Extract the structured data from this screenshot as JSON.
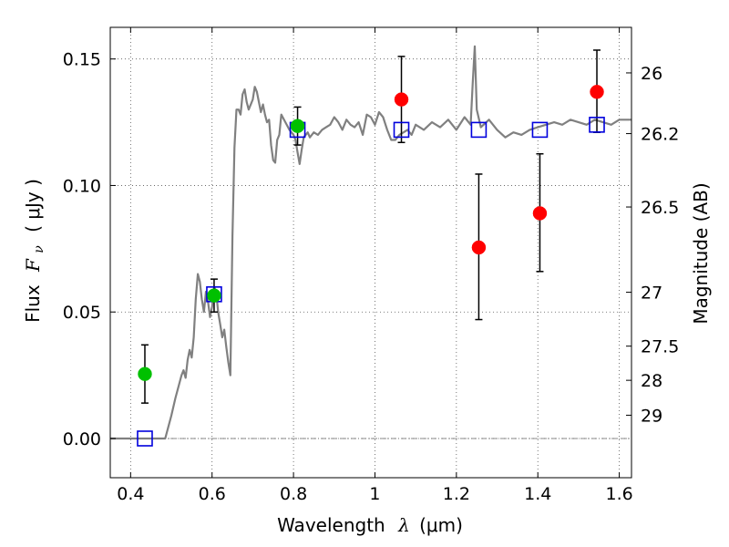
{
  "chart_data": {
    "type": "scatter",
    "xlabel": {
      "pre": "Wavelength",
      "sym": "λ",
      "unit": "(μm)"
    },
    "ylabel": {
      "pre": "Flux",
      "sym": "F",
      "sub": "ν",
      "unit": "( μJy )"
    },
    "y2label": "Magnitude (AB)",
    "xlim": [
      0.35,
      1.63
    ],
    "ylim": [
      -0.0155,
      0.1625
    ],
    "grid": true,
    "x_ticks": [
      {
        "value": 0.4,
        "label": "0.4"
      },
      {
        "value": 0.6,
        "label": "0.6"
      },
      {
        "value": 0.8,
        "label": "0.8"
      },
      {
        "value": 1.0,
        "label": "1"
      },
      {
        "value": 1.2,
        "label": "1.2"
      },
      {
        "value": 1.4,
        "label": "1.4"
      },
      {
        "value": 1.6,
        "label": "1.6"
      }
    ],
    "y_ticks": [
      {
        "value": 0.0,
        "label": "0.00"
      },
      {
        "value": 0.05,
        "label": "0.05"
      },
      {
        "value": 0.1,
        "label": "0.10"
      },
      {
        "value": 0.15,
        "label": "0.15"
      }
    ],
    "y2_ticks": [
      {
        "flux": 0.1445,
        "label": "26"
      },
      {
        "flux": 0.1205,
        "label": "26.2"
      },
      {
        "flux": 0.0915,
        "label": "26.5"
      },
      {
        "flux": 0.0578,
        "label": "27"
      },
      {
        "flux": 0.0365,
        "label": "27.5"
      },
      {
        "flux": 0.023,
        "label": "28"
      },
      {
        "flux": 0.0092,
        "label": "29"
      }
    ],
    "model_sed": {
      "color": "#808080",
      "x": [
        0.35,
        0.485,
        0.5,
        0.51,
        0.52,
        0.525,
        0.53,
        0.535,
        0.54,
        0.545,
        0.55,
        0.555,
        0.56,
        0.565,
        0.57,
        0.575,
        0.58,
        0.585,
        0.59,
        0.595,
        0.6,
        0.605,
        0.61,
        0.615,
        0.62,
        0.625,
        0.63,
        0.635,
        0.64,
        0.645,
        0.65,
        0.655,
        0.66,
        0.665,
        0.67,
        0.675,
        0.68,
        0.685,
        0.69,
        0.695,
        0.7,
        0.705,
        0.71,
        0.715,
        0.72,
        0.725,
        0.73,
        0.735,
        0.74,
        0.745,
        0.75,
        0.755,
        0.76,
        0.765,
        0.77,
        0.78,
        0.79,
        0.8,
        0.805,
        0.81,
        0.815,
        0.82,
        0.825,
        0.83,
        0.835,
        0.84,
        0.85,
        0.86,
        0.87,
        0.88,
        0.89,
        0.9,
        0.91,
        0.92,
        0.93,
        0.94,
        0.95,
        0.96,
        0.97,
        0.98,
        0.99,
        1.0,
        1.01,
        1.02,
        1.03,
        1.04,
        1.05,
        1.06,
        1.07,
        1.08,
        1.09,
        1.1,
        1.12,
        1.14,
        1.16,
        1.18,
        1.2,
        1.22,
        1.235,
        1.24,
        1.245,
        1.25,
        1.26,
        1.28,
        1.3,
        1.32,
        1.34,
        1.36,
        1.38,
        1.4,
        1.42,
        1.44,
        1.46,
        1.48,
        1.5,
        1.52,
        1.54,
        1.56,
        1.58,
        1.6,
        1.63
      ],
      "y": [
        0.0,
        0.0,
        0.009,
        0.016,
        0.022,
        0.025,
        0.027,
        0.024,
        0.031,
        0.035,
        0.032,
        0.04,
        0.055,
        0.065,
        0.062,
        0.055,
        0.05,
        0.058,
        0.054,
        0.048,
        0.052,
        0.06,
        0.058,
        0.05,
        0.045,
        0.04,
        0.043,
        0.036,
        0.03,
        0.025,
        0.08,
        0.115,
        0.13,
        0.13,
        0.128,
        0.136,
        0.138,
        0.133,
        0.13,
        0.132,
        0.134,
        0.139,
        0.137,
        0.133,
        0.129,
        0.132,
        0.128,
        0.125,
        0.126,
        0.116,
        0.11,
        0.109,
        0.118,
        0.12,
        0.128,
        0.125,
        0.122,
        0.12,
        0.118,
        0.113,
        0.1085,
        0.114,
        0.119,
        0.12,
        0.121,
        0.119,
        0.121,
        0.12,
        0.122,
        0.123,
        0.124,
        0.127,
        0.125,
        0.122,
        0.126,
        0.124,
        0.123,
        0.125,
        0.12,
        0.128,
        0.127,
        0.124,
        0.129,
        0.127,
        0.122,
        0.118,
        0.118,
        0.12,
        0.121,
        0.122,
        0.12,
        0.124,
        0.122,
        0.125,
        0.123,
        0.126,
        0.122,
        0.127,
        0.124,
        0.14,
        0.155,
        0.13,
        0.123,
        0.126,
        0.122,
        0.119,
        0.121,
        0.12,
        0.122,
        0.123,
        0.124,
        0.125,
        0.124,
        0.126,
        0.125,
        0.124,
        0.126,
        0.125,
        0.124,
        0.126,
        0.126
      ]
    },
    "model_points": {
      "color": "#0000dd",
      "x": [
        0.435,
        0.605,
        0.81,
        1.065,
        1.255,
        1.405,
        1.545
      ],
      "y": [
        0.0,
        0.057,
        0.122,
        0.122,
        0.122,
        0.122,
        0.124
      ]
    },
    "observed_optical": {
      "color": "#00c000",
      "x": [
        0.435,
        0.605,
        0.81
      ],
      "y": [
        0.0255,
        0.0565,
        0.1235
      ],
      "err_low": [
        0.014,
        0.05,
        0.116
      ],
      "err_high": [
        0.037,
        0.063,
        0.131
      ]
    },
    "observed_nir": {
      "color": "#ff0000",
      "x": [
        1.065,
        1.255,
        1.405,
        1.545
      ],
      "y": [
        0.134,
        0.0755,
        0.089,
        0.137
      ],
      "err_low": [
        0.117,
        0.047,
        0.066,
        0.121
      ],
      "err_high": [
        0.151,
        0.1045,
        0.1125,
        0.1535
      ]
    }
  }
}
